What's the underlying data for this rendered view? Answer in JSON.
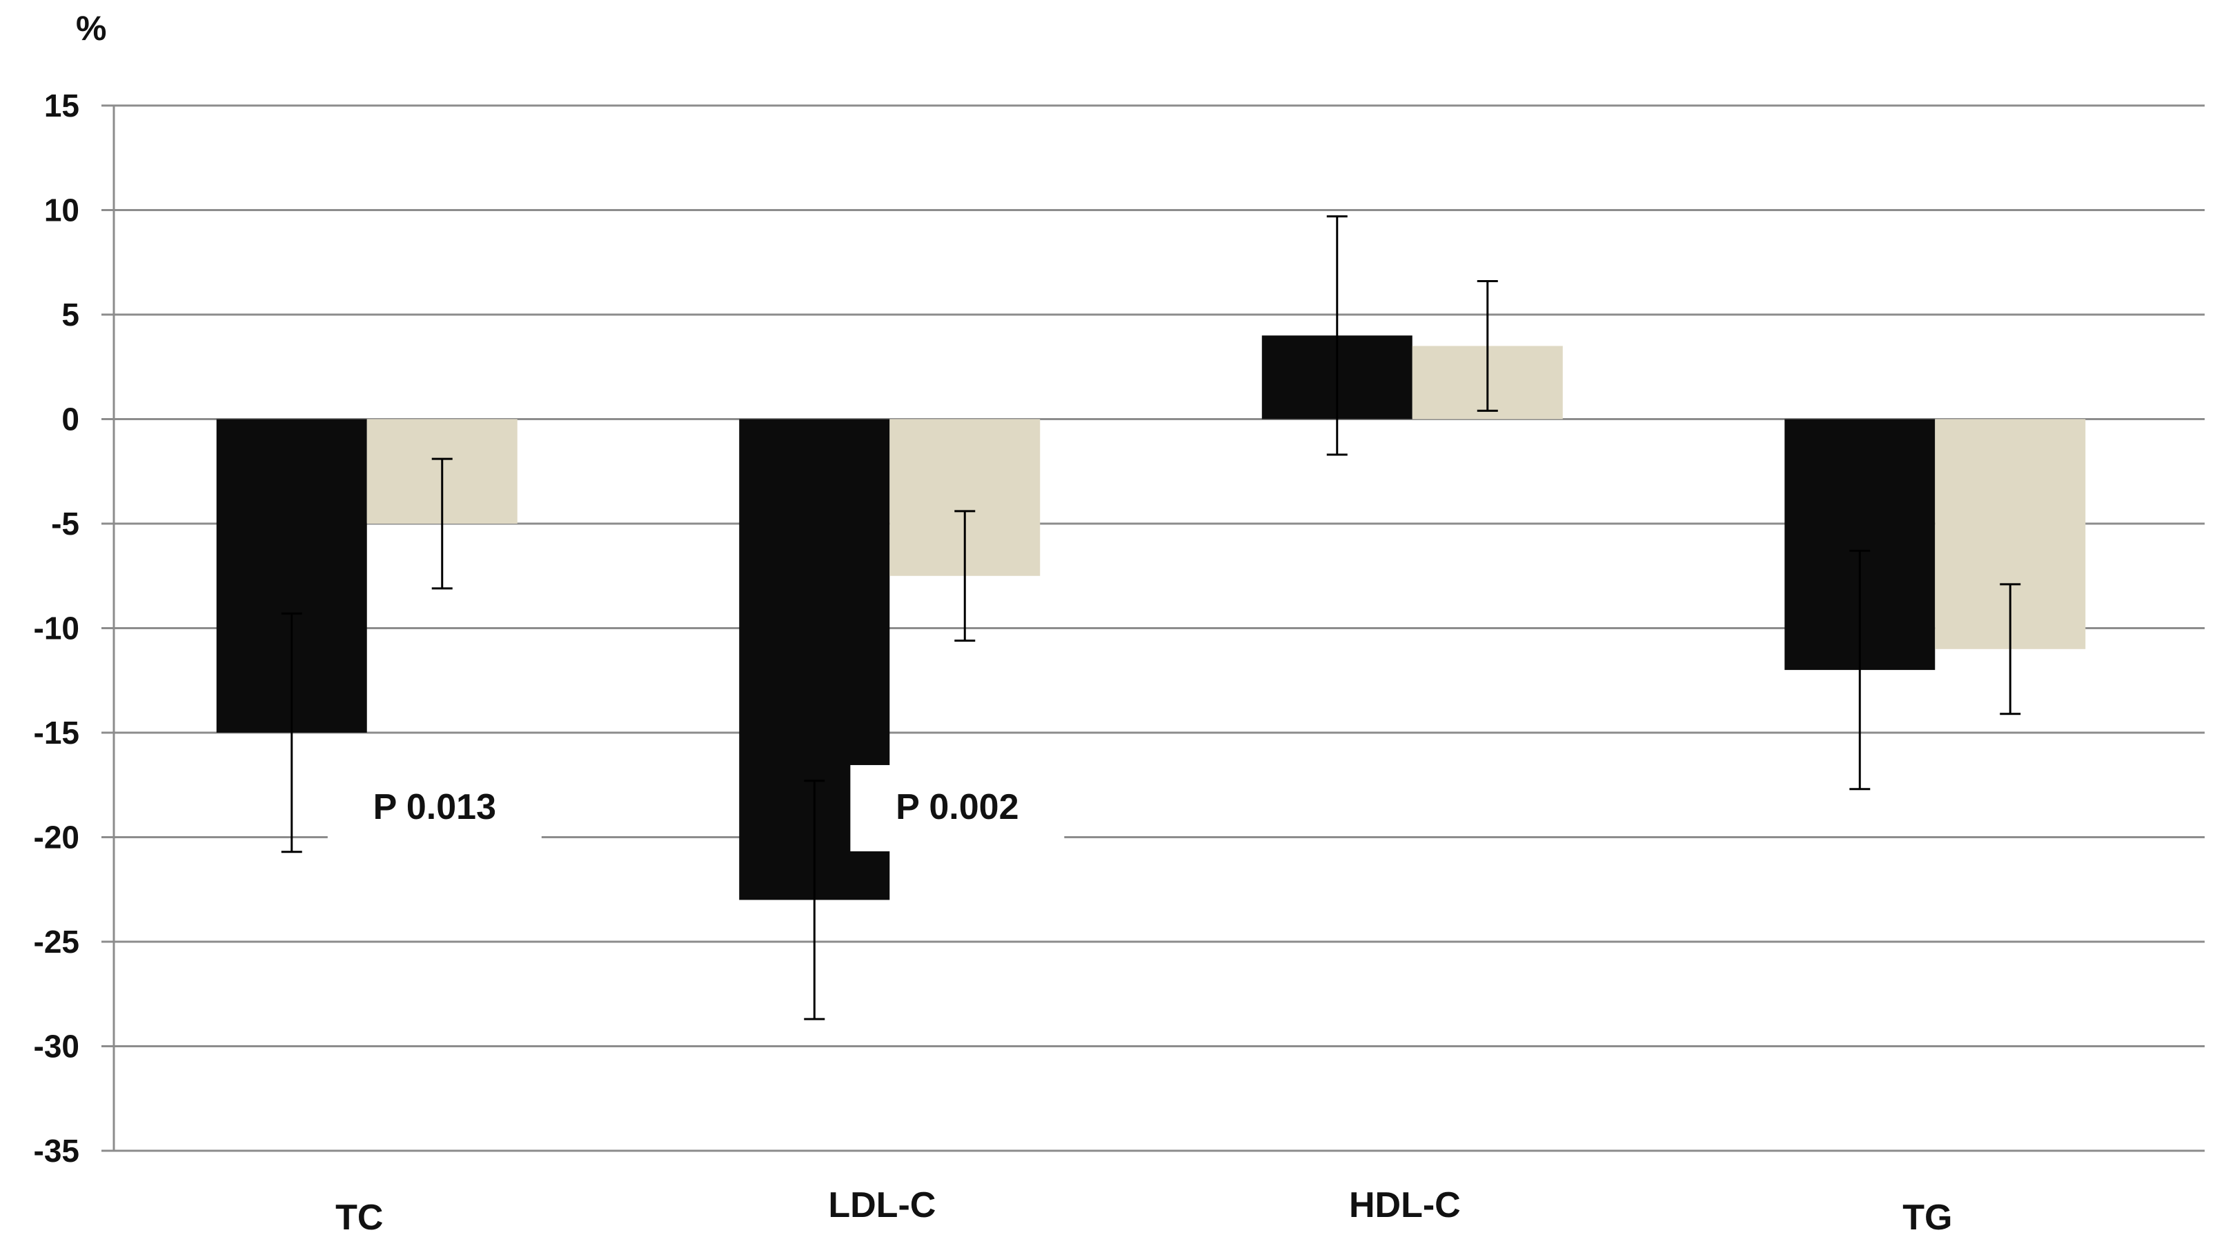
{
  "chart_data": {
    "type": "bar",
    "title": "",
    "xlabel": "",
    "ylabel": "%",
    "ylim": [
      -35,
      15
    ],
    "yticks": [
      15,
      10,
      5,
      0,
      -5,
      -10,
      -15,
      -20,
      -25,
      -30,
      -35
    ],
    "grid": true,
    "legend": "none",
    "categories": [
      "TC",
      "LDL-C",
      "HDL-C",
      "TG"
    ],
    "series": [
      {
        "color": "#0c0c0c",
        "values": [
          -15,
          -23,
          4,
          -12
        ],
        "error": [
          5.7,
          5.7,
          5.7,
          5.7
        ]
      },
      {
        "color": "#dfd9c4",
        "values": [
          -5,
          -7.5,
          3.5,
          -11
        ],
        "error": [
          3.1,
          3.1,
          3.1,
          3.1
        ]
      }
    ],
    "annotations": [
      {
        "text": "P 0.013",
        "category": 0,
        "y": -18.2
      },
      {
        "text": "P 0.002",
        "category": 1,
        "y": -18.2
      }
    ]
  }
}
